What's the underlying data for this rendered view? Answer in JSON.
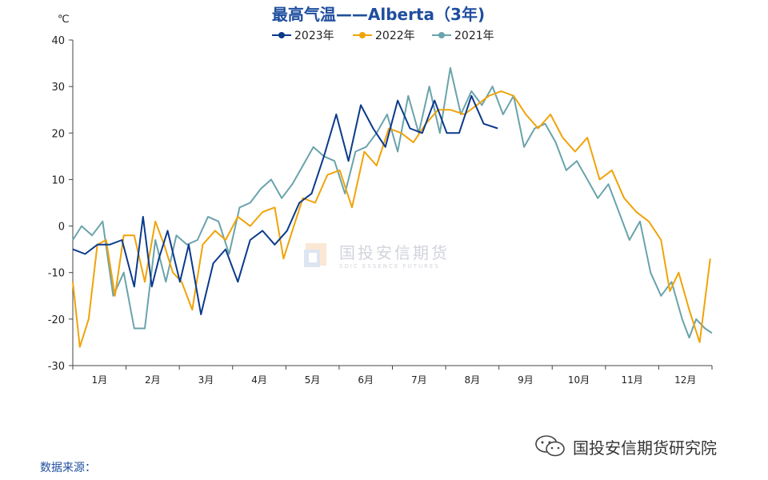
{
  "chart_data": {
    "type": "line",
    "title": "最高气温——Alberta（3年)",
    "ylabel": "℃",
    "ylim": [
      -30,
      40
    ],
    "yticks": [
      "40",
      "30",
      "20",
      "10",
      "0",
      "-10",
      "-20",
      "-30"
    ],
    "categories": [
      "1月",
      "2月",
      "3月",
      "4月",
      "5月",
      "6月",
      "7月",
      "8月",
      "9月",
      "10月",
      "11月",
      "12月"
    ],
    "series": [
      {
        "name": "2023年",
        "color": "#0b3a8c",
        "x": [
          1,
          8,
          15,
          22,
          29,
          36,
          41,
          46,
          50,
          55,
          62,
          67,
          74,
          81,
          88,
          95,
          102,
          109,
          116,
          123,
          130,
          137,
          144,
          151,
          158,
          165,
          172,
          179,
          186,
          193,
          200,
          207,
          214,
          221,
          228,
          235,
          243
        ],
        "values": [
          -5,
          -6,
          -4,
          -4,
          -3,
          -13,
          2,
          -13,
          -7,
          -1,
          -12,
          -4,
          -19,
          -8,
          -5,
          -12,
          -3,
          -1,
          -4,
          -1,
          5,
          7,
          15,
          24,
          14,
          26,
          21,
          17,
          27,
          21,
          20,
          27,
          20,
          20,
          28,
          22,
          21
        ]
      },
      {
        "name": "2022年",
        "color": "#f0a30a",
        "x": [
          1,
          5,
          10,
          15,
          20,
          25,
          30,
          36,
          42,
          48,
          53,
          58,
          63,
          69,
          75,
          82,
          88,
          95,
          102,
          109,
          116,
          121,
          126,
          132,
          139,
          146,
          153,
          160,
          167,
          174,
          181,
          188,
          195,
          202,
          209,
          216,
          224,
          231,
          238,
          245,
          252,
          259,
          266,
          273,
          280,
          287,
          294,
          301,
          308,
          315,
          322,
          329,
          336,
          341,
          346,
          352,
          358,
          364
        ],
        "values": [
          -12,
          -26,
          -20,
          -4,
          -3,
          -15,
          -2,
          -2,
          -12,
          1,
          -4,
          -10,
          -12,
          -18,
          -4,
          -1,
          -3,
          2,
          0,
          3,
          4,
          -7,
          -1,
          6,
          5,
          11,
          12,
          4,
          16,
          13,
          21,
          20,
          18,
          22,
          25,
          25,
          24,
          26,
          28,
          29,
          28,
          24,
          21,
          24,
          19,
          16,
          19,
          10,
          12,
          6,
          3,
          1,
          -3,
          -14,
          -10,
          -18,
          -25,
          -7
        ]
      },
      {
        "name": "2021年",
        "color": "#6aa3ab",
        "x": [
          1,
          6,
          12,
          18,
          24,
          30,
          36,
          42,
          48,
          54,
          60,
          66,
          72,
          78,
          84,
          90,
          96,
          102,
          108,
          114,
          120,
          126,
          132,
          138,
          144,
          150,
          156,
          162,
          168,
          174,
          180,
          186,
          192,
          198,
          204,
          210,
          216,
          222,
          228,
          234,
          240,
          246,
          252,
          258,
          264,
          270,
          276,
          282,
          288,
          294,
          300,
          306,
          312,
          318,
          324,
          330,
          336,
          342,
          348,
          352,
          356,
          361,
          365
        ],
        "values": [
          -3,
          0,
          -2,
          1,
          -15,
          -10,
          -22,
          -22,
          -3,
          -12,
          -2,
          -4,
          -3,
          2,
          1,
          -6,
          4,
          5,
          8,
          10,
          6,
          9,
          13,
          17,
          15,
          14,
          7,
          16,
          17,
          20,
          24,
          16,
          28,
          20,
          30,
          20,
          34,
          24,
          29,
          26,
          30,
          24,
          28,
          17,
          21,
          22,
          18,
          12,
          14,
          10,
          6,
          9,
          3,
          -3,
          1,
          -10,
          -15,
          -12,
          -20,
          -24,
          -20,
          -22,
          -23
        ]
      }
    ]
  },
  "footer": {
    "source_label": "数据来源：",
    "brand_label": "国投安信期货研究院"
  },
  "watermark": {
    "cn": "国投安信期货",
    "en": "SDIC ESSENCE FUTURES"
  }
}
